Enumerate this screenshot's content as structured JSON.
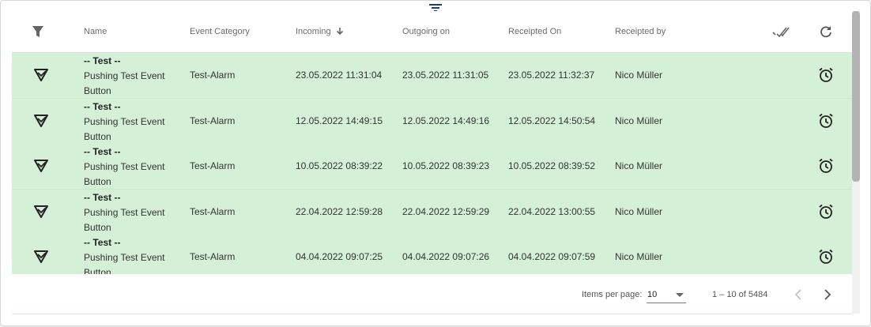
{
  "header": {
    "columns": [
      "Name",
      "Event Category",
      "Incoming",
      "Outgoing on",
      "Receipted On",
      "Receipted by"
    ],
    "sort_indicator": "arrow-down",
    "icons": [
      "filter-icon",
      "double-check-icon",
      "refresh-icon",
      "sort-filter-icon"
    ]
  },
  "rows": [
    {
      "title": "-- Test --",
      "name": "Pushing Test Event",
      "name2": "Button",
      "category": "Test-Alarm",
      "incoming": "23.05.2022 11:31:04",
      "outgoing": "23.05.2022 11:31:05",
      "receipted_on": "23.05.2022 11:32:37",
      "receipted_by": "Nico Müller"
    },
    {
      "title": "-- Test --",
      "name": "Pushing Test Event",
      "name2": "Button",
      "category": "Test-Alarm",
      "incoming": "12.05.2022 14:49:15",
      "outgoing": "12.05.2022 14:49:16",
      "receipted_on": "12.05.2022 14:50:54",
      "receipted_by": "Nico Müller"
    },
    {
      "title": "-- Test --",
      "name": "Pushing Test Event",
      "name2": "Button",
      "category": "Test-Alarm",
      "incoming": "10.05.2022 08:39:22",
      "outgoing": "10.05.2022 08:39:23",
      "receipted_on": "10.05.2022 08:39:52",
      "receipted_by": "Nico Müller"
    },
    {
      "title": "-- Test --",
      "name": "Pushing Test Event",
      "name2": "Button",
      "category": "Test-Alarm",
      "incoming": "22.04.2022 12:59:28",
      "outgoing": "22.04.2022 12:59:29",
      "receipted_on": "22.04.2022 13:00:55",
      "receipted_by": "Nico Müller"
    },
    {
      "title": "-- Test --",
      "name": "Pushing Test Event",
      "name2": "Button",
      "category": "Test-Alarm",
      "incoming": "04.04.2022 09:07:25",
      "outgoing": "04.04.2022 09:07:26",
      "receipted_on": "04.04.2022 09:07:59",
      "receipted_by": "Nico Müller"
    }
  ],
  "paginator": {
    "items_per_page_label": "Items per page:",
    "page_size": "10",
    "range": "1 – 10 of 5484"
  },
  "colors": {
    "row_bg": "#d4f1d7",
    "accent": "#1e3a8a"
  }
}
